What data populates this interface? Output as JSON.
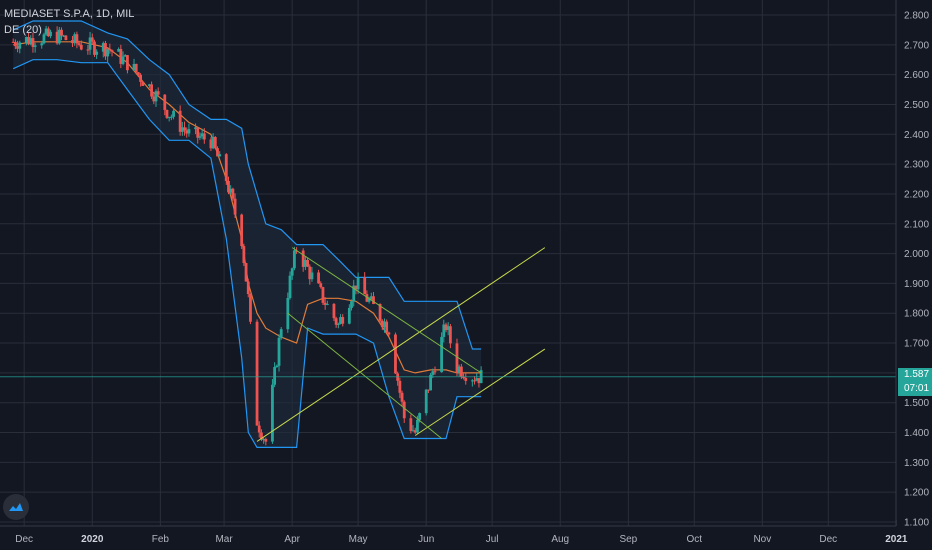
{
  "legend": {
    "symbol": "MEDIASET S.P.A, 1D, MIL",
    "indicator": "DE (20)"
  },
  "badge": {
    "price": "1.587",
    "countdown": "07:01"
  },
  "colors": {
    "background": "#131722",
    "grid": "#2a2e39",
    "up": "#26a69a",
    "down": "#ef5350",
    "channel": "#2196f3",
    "channel_fill": "#1e2b3e",
    "midline": "#e07b39",
    "trendline_yellow": "#c8d94a",
    "trendline_green": "#7cb342",
    "price_line": "#26a69a"
  },
  "icons": {
    "logo": "tradingview-cloud-icon"
  },
  "chart_data": {
    "type": "candlestick",
    "title": "MEDIASET S.P.A, 1D, MIL",
    "indicator": "DE (20)",
    "x_axis_ticks": [
      "Dec",
      "2020",
      "Feb",
      "Mar",
      "Apr",
      "May",
      "Jun",
      "Jul",
      "Aug",
      "Sep",
      "Oct",
      "Nov",
      "Dec",
      "2021"
    ],
    "y_axis_ticks": [
      "2.800",
      "2.700",
      "2.600",
      "2.500",
      "2.400",
      "2.300",
      "2.200",
      "2.100",
      "2.000",
      "1.900",
      "1.800",
      "1.700",
      "1.600",
      "1.500",
      "1.400",
      "1.300",
      "1.200",
      "1.100"
    ],
    "ylim": [
      1.1,
      2.8
    ],
    "grid": true,
    "last_price": 1.587,
    "price_series": {
      "name": "Close (approx.)",
      "dates": [
        "2019-11-26",
        "2019-12-05",
        "2019-12-16",
        "2019-12-27",
        "2020-01-08",
        "2020-01-17",
        "2020-01-27",
        "2020-02-05",
        "2020-02-14",
        "2020-02-24",
        "2020-03-02",
        "2020-03-09",
        "2020-03-12",
        "2020-03-16",
        "2020-03-20",
        "2020-03-27",
        "2020-04-03",
        "2020-04-08",
        "2020-04-15",
        "2020-04-22",
        "2020-04-30",
        "2020-05-08",
        "2020-05-15",
        "2020-05-22",
        "2020-05-27",
        "2020-06-03",
        "2020-06-10",
        "2020-06-15",
        "2020-06-22",
        "2020-06-26"
      ],
      "close": [
        2.71,
        2.72,
        2.73,
        2.7,
        2.69,
        2.64,
        2.56,
        2.47,
        2.4,
        2.38,
        2.25,
        2.05,
        1.85,
        1.44,
        1.37,
        1.76,
        2.02,
        1.95,
        1.85,
        1.76,
        1.9,
        1.82,
        1.75,
        1.45,
        1.4,
        1.58,
        1.76,
        1.62,
        1.59,
        1.587
      ]
    },
    "channel_upper": [
      2.75,
      2.78,
      2.78,
      2.78,
      2.74,
      2.72,
      2.65,
      2.6,
      2.5,
      2.45,
      2.45,
      2.42,
      2.3,
      2.2,
      2.1,
      2.08,
      2.03,
      2.03,
      2.03,
      1.98,
      1.92,
      1.92,
      1.92,
      1.84,
      1.84,
      1.84,
      1.84,
      1.84,
      1.68,
      1.68
    ],
    "channel_lower": [
      2.62,
      2.65,
      2.65,
      2.64,
      2.64,
      2.55,
      2.45,
      2.38,
      2.38,
      2.32,
      2.05,
      1.65,
      1.4,
      1.35,
      1.35,
      1.35,
      1.35,
      1.75,
      1.73,
      1.73,
      1.73,
      1.7,
      1.52,
      1.38,
      1.38,
      1.38,
      1.38,
      1.52,
      1.52,
      1.52
    ],
    "channel_mid": [
      2.7,
      2.71,
      2.71,
      2.71,
      2.69,
      2.64,
      2.55,
      2.5,
      2.44,
      2.4,
      2.25,
      2.05,
      1.9,
      1.8,
      1.75,
      1.72,
      1.7,
      1.83,
      1.85,
      1.85,
      1.84,
      1.8,
      1.72,
      1.61,
      1.6,
      1.61,
      1.61,
      1.6,
      1.6,
      1.6
    ],
    "trend_lines": [
      {
        "from": [
          "2020-03-16",
          1.37
        ],
        "to": [
          "2020-07-25",
          2.02
        ],
        "color": "yellow"
      },
      {
        "from": [
          "2020-05-27",
          1.39
        ],
        "to": [
          "2020-07-25",
          1.68
        ],
        "color": "yellow"
      },
      {
        "from": [
          "2020-04-01",
          2.02
        ],
        "to": [
          "2020-06-26",
          1.6
        ],
        "color": "green"
      },
      {
        "from": [
          "2020-03-30",
          1.8
        ],
        "to": [
          "2020-06-08",
          1.38
        ],
        "color": "green"
      }
    ]
  }
}
